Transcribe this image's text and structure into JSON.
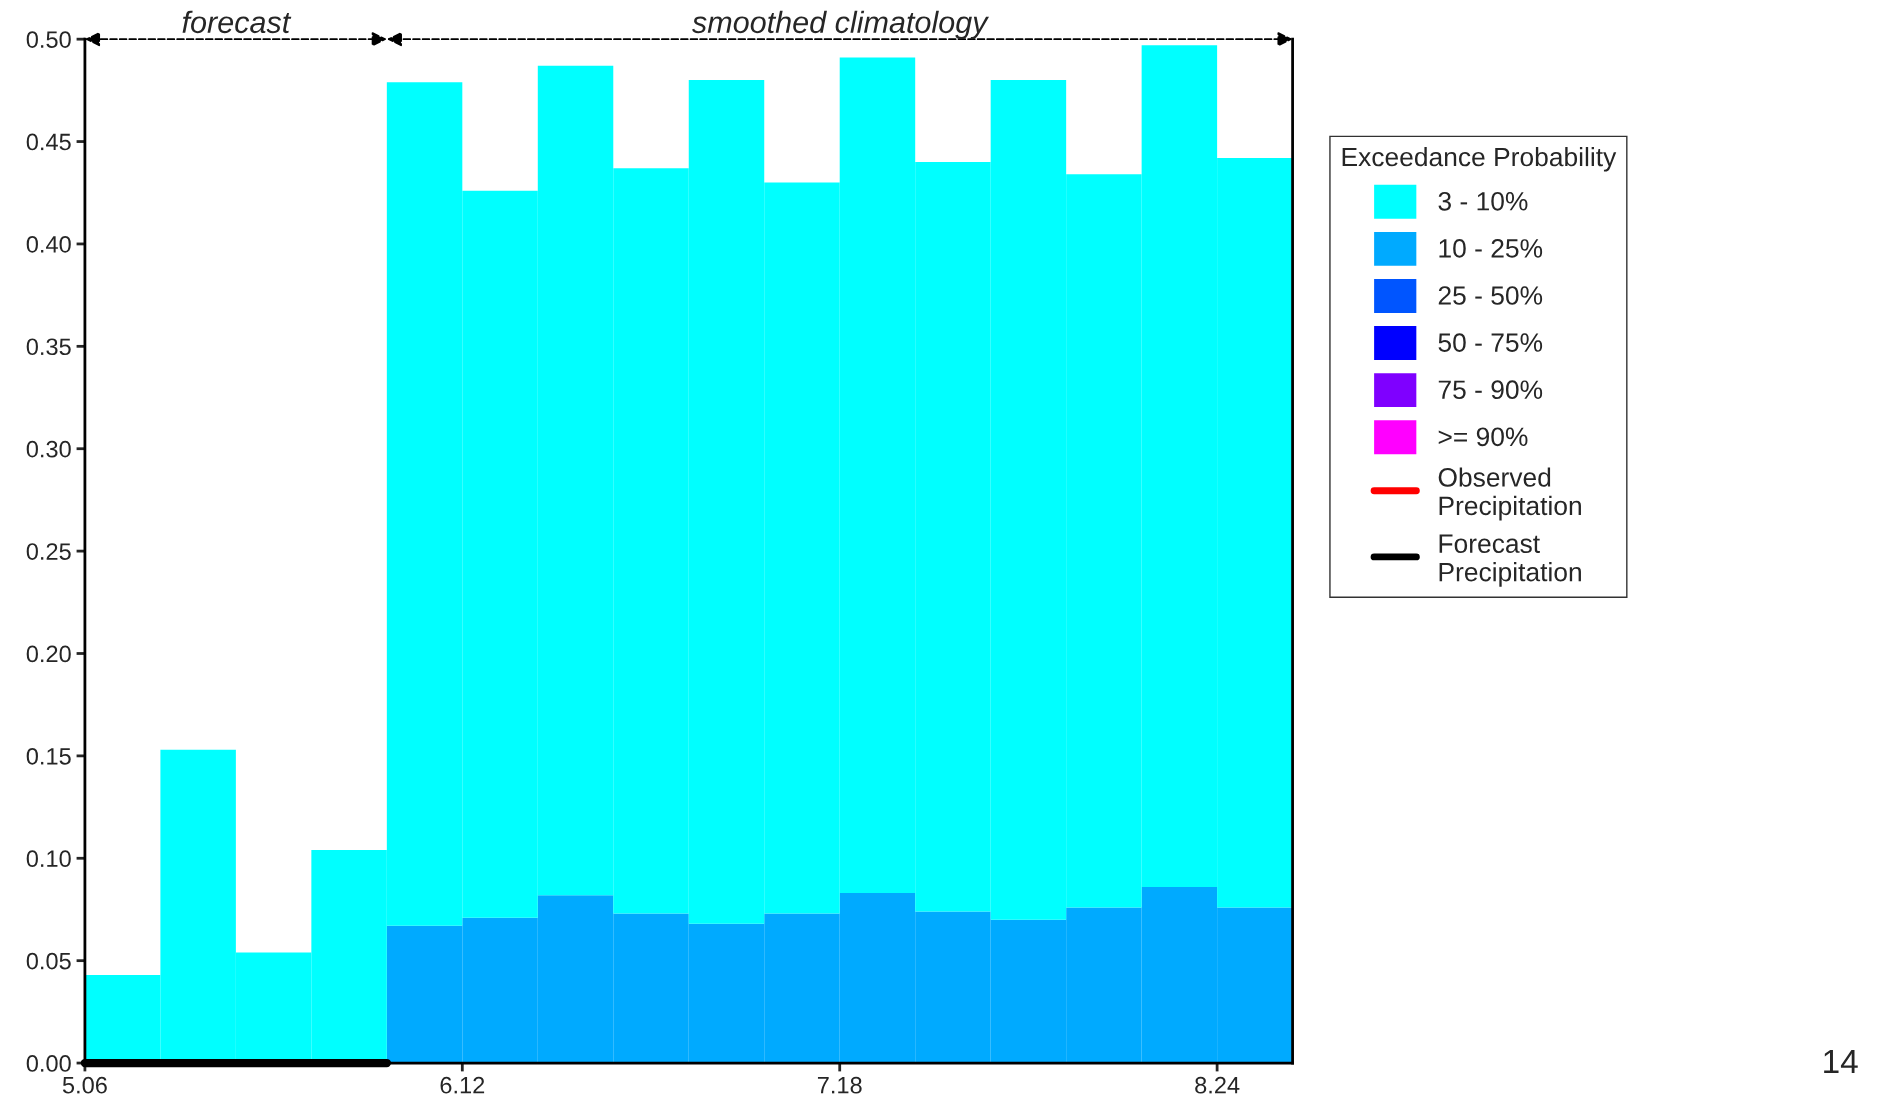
{
  "chart_data": {
    "type": "bar",
    "stacked": true,
    "legend_title": "Exceedance Probability",
    "legend": "right",
    "grid": false,
    "categories": [
      "5.06",
      null,
      null,
      null,
      null,
      "6.12",
      null,
      null,
      null,
      null,
      "7.18",
      null,
      null,
      null,
      null,
      "8.24"
    ],
    "ylim": [
      0,
      0.5
    ],
    "yticks": [
      {
        "value": 0,
        "label": "0.00"
      },
      {
        "value": 0.05,
        "label": "0.05"
      },
      {
        "value": 0.1,
        "label": "0.10"
      },
      {
        "value": 0.15,
        "label": "0.15"
      },
      {
        "value": 0.2,
        "label": "0.20"
      },
      {
        "value": 0.25,
        "label": "0.25"
      },
      {
        "value": 0.3,
        "label": "0.30"
      },
      {
        "value": 0.35,
        "label": "0.35"
      },
      {
        "value": 0.4,
        "label": "0.40"
      },
      {
        "value": 0.45,
        "label": "0.45"
      },
      {
        "value": 0.5,
        "label": "0.50"
      }
    ],
    "series": [
      {
        "name": ">= 90%",
        "color": "#ff00ff",
        "values": [
          null,
          null,
          null,
          null,
          null,
          null,
          null,
          null,
          null,
          null,
          null,
          null,
          null,
          null,
          null,
          null
        ]
      },
      {
        "name": "75 - 90%",
        "color": "#7f00ff",
        "values": [
          null,
          null,
          null,
          null,
          null,
          null,
          null,
          null,
          null,
          null,
          null,
          null,
          null,
          null,
          null,
          null
        ]
      },
      {
        "name": "50 - 75%",
        "color": "#0000ff",
        "values": [
          null,
          null,
          null,
          null,
          null,
          null,
          null,
          null,
          null,
          null,
          null,
          null,
          null,
          null,
          null,
          null
        ]
      },
      {
        "name": "25 - 50%",
        "color": "#0055ff",
        "values": [
          null,
          null,
          null,
          null,
          null,
          null,
          null,
          null,
          null,
          null,
          null,
          null,
          null,
          null,
          null,
          null
        ]
      },
      {
        "name": "10 - 25%",
        "color": "#00aaff",
        "values": [
          null,
          null,
          null,
          null,
          0.067,
          0.071,
          0.082,
          0.073,
          0.068,
          0.073,
          0.083,
          0.074,
          0.07,
          0.076,
          0.086,
          0.076
        ]
      },
      {
        "name": "3 - 10%",
        "color": "#00ffff",
        "values": [
          0.043,
          0.153,
          0.054,
          0.104,
          0.412,
          0.355,
          0.405,
          0.364,
          0.412,
          0.357,
          0.408,
          0.366,
          0.41,
          0.358,
          0.411,
          0.366
        ]
      },
      {
        "name": "Observed\nPrecipitation",
        "type": "line",
        "color": "#ff0000",
        "values": [
          null,
          null,
          null,
          null,
          null,
          null,
          null,
          null,
          null,
          null,
          null,
          null,
          null,
          null,
          null,
          null
        ]
      },
      {
        "name": "Forecast\nPrecipitation",
        "type": "line",
        "color": "#000000",
        "values": [
          0,
          0,
          0,
          0,
          0,
          null,
          null,
          null,
          null,
          null,
          null,
          null,
          null,
          null,
          null,
          null
        ]
      }
    ],
    "annotations": [
      "forecast",
      "smoothed climatology",
      "14"
    ]
  }
}
